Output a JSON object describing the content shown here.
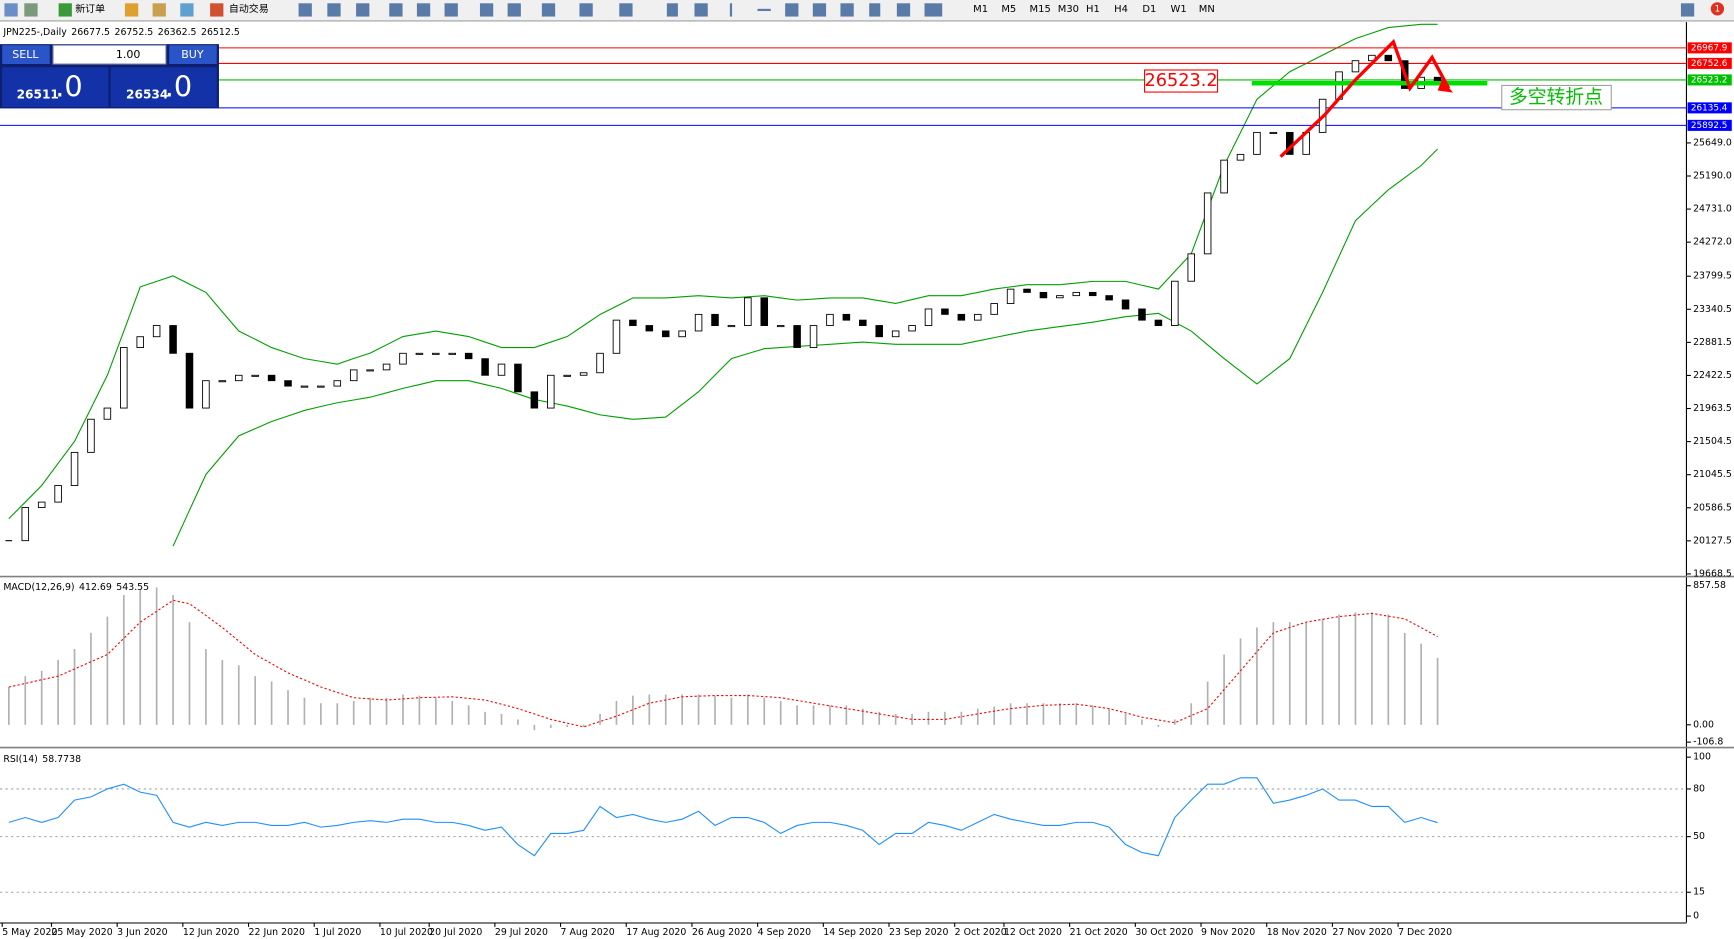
{
  "toolbar": {
    "new_order": "新订单",
    "auto_trading": "自动交易",
    "timeframes": [
      "M1",
      "M5",
      "M15",
      "M30",
      "H1",
      "H4",
      "D1",
      "W1",
      "MN"
    ],
    "notifications": "1"
  },
  "trade_panel": {
    "sell": "SELL",
    "buy": "BUY",
    "lot": "1.00",
    "bid_int": "26511",
    "bid_frac": ".0",
    "ask_int": "26534",
    "ask_frac": ".0"
  },
  "chart_data": [
    {
      "type": "candlestick",
      "title": "JPN225-,Daily",
      "header_values": [
        26677.5,
        26752.5,
        26362.5,
        26512.5
      ],
      "categories": [
        "5 May 2020",
        null,
        null,
        "25 May 2020",
        null,
        null,
        null,
        "3 Jun 2020",
        null,
        null,
        null,
        "12 Jun 2020",
        null,
        null,
        null,
        "22 Jun 2020",
        null,
        null,
        null,
        "1 Jul 2020",
        null,
        null,
        null,
        "10 Jul 2020",
        null,
        null,
        "20 Jul 2020",
        null,
        null,
        null,
        "29 Jul 2020",
        null,
        null,
        null,
        "7 Aug 2020",
        null,
        null,
        null,
        "17 Aug 2020",
        null,
        null,
        null,
        "26 Aug 2020",
        null,
        null,
        null,
        "4 Sep 2020",
        null,
        null,
        null,
        "14 Sep 2020",
        null,
        null,
        null,
        "23 Sep 2020",
        null,
        null,
        null,
        "2 Oct 2020",
        null,
        null,
        "12 Oct 2020",
        null,
        null,
        null,
        "21 Oct 2020",
        null,
        null,
        null,
        "30 Oct 2020",
        null,
        null,
        null,
        "9 Nov 2020",
        null,
        null,
        null,
        "18 Nov 2020",
        null,
        null,
        null,
        "27 Nov 2020",
        null,
        null,
        null,
        "7 Dec 2020",
        null,
        null
      ],
      "closes": [
        20130,
        20590,
        20665,
        20895,
        21355,
        21815,
        21970,
        22810,
        22960,
        23115,
        22730,
        21970,
        22350,
        22350,
        22425,
        22425,
        22350,
        22275,
        22275,
        22275,
        22350,
        22500,
        22500,
        22580,
        22730,
        22730,
        22730,
        22730,
        22655,
        22425,
        22580,
        22195,
        21970,
        22425,
        22425,
        22460,
        22730,
        23190,
        23115,
        23040,
        22960,
        23040,
        23270,
        23115,
        23115,
        23500,
        23115,
        23115,
        22810,
        23115,
        23270,
        23190,
        23115,
        22960,
        23040,
        23115,
        23345,
        23270,
        23190,
        23270,
        23420,
        23620,
        23575,
        23500,
        23530,
        23575,
        23530,
        23470,
        23345,
        23190,
        23115,
        23730,
        24110,
        24955,
        25410,
        25490,
        25795,
        25795,
        25490,
        25795,
        26255,
        26635,
        26790,
        26865,
        26790,
        26405,
        26560,
        26512.5
      ],
      "bands": {
        "color": "#00a000",
        "upper": [
          20436,
          20666,
          20895,
          21202,
          21508,
          21967,
          22426,
          23039,
          23651,
          23728,
          23804,
          23690,
          23575,
          23307,
          23039,
          22924,
          22809,
          22733,
          22656,
          22618,
          22580,
          22657,
          22733,
          22848,
          22962,
          23001,
          23039,
          23001,
          22962,
          22886,
          22809,
          22809,
          22809,
          22886,
          22962,
          23115,
          23268,
          23383,
          23498,
          23498,
          23498,
          23514,
          23529,
          23514,
          23498,
          23514,
          23529,
          23499,
          23468,
          23483,
          23498,
          23498,
          23498,
          23460,
          23422,
          23476,
          23529,
          23529,
          23529,
          23575,
          23621,
          23652,
          23682,
          23682,
          23682,
          23705,
          23728,
          23728,
          23728,
          23675,
          23621,
          23866,
          24111,
          24723,
          25335,
          25795,
          26254,
          26446,
          26637,
          26752,
          26866,
          26981,
          27096,
          27173,
          27249,
          27272,
          27295,
          27295
        ],
        "lower": [
          null,
          null,
          null,
          null,
          null,
          null,
          null,
          null,
          null,
          null,
          20053,
          20551,
          21049,
          21317,
          21584,
          21684,
          21783,
          21860,
          21937,
          21991,
          22044,
          22082,
          22120,
          22182,
          22243,
          22297,
          22350,
          22350,
          22350,
          22297,
          22243,
          22167,
          22090,
          22044,
          21998,
          21937,
          21875,
          21845,
          21814,
          21830,
          21845,
          22021,
          22197,
          22427,
          22656,
          22725,
          22794,
          22809,
          22824,
          22840,
          22855,
          22871,
          22886,
          22871,
          22855,
          22855,
          22855,
          22855,
          22855,
          22901,
          22947,
          22993,
          23039,
          23070,
          23100,
          23131,
          23161,
          23200,
          23238,
          23261,
          23284,
          23162,
          23039,
          22848,
          22656,
          22480,
          22304,
          22480,
          22656,
          23116,
          23575,
          24073,
          24570,
          24785,
          24999,
          25167,
          25335,
          25565
        ]
      },
      "levels": [
        {
          "value": 26967.9,
          "color": "#ff0000"
        },
        {
          "value": 26752.6,
          "color": "#ff0000"
        },
        {
          "value": 26523.2,
          "color": "#00c000"
        },
        {
          "value": 26135.4,
          "color": "#0000ff"
        },
        {
          "value": 25892.5,
          "color": "#0000ff"
        }
      ],
      "annotation_value": 26523.2,
      "annotation_text": "多空转折点",
      "ylim": [
        19640,
        27326
      ],
      "yticks": [
        {
          "value": 25649,
          "label": "25649.0"
        },
        {
          "value": 25190,
          "label": "25190.0"
        },
        {
          "value": 24731,
          "label": "24731.0"
        },
        {
          "value": 24272,
          "label": "24272.0"
        },
        23799.5,
        23340.5,
        22881.5,
        22422.5,
        21963.5,
        21504.5,
        21045.5,
        20586.5,
        20127.5,
        19668.5
      ]
    },
    {
      "type": "macd",
      "title": "MACD(12,26,9)",
      "header_values": [
        412.69,
        543.55
      ],
      "series": [
        {
          "color": "#b0b0b0",
          "values": [
            233,
            300,
            333,
            400,
            467,
            567,
            667,
            800,
            833,
            847,
            800,
            633,
            467,
            400,
            367,
            300,
            267,
            213,
            167,
            133,
            133,
            147,
            167,
            167,
            187,
            180,
            167,
            147,
            120,
            80,
            67,
            33,
            -33,
            -20,
            -13,
            -13,
            67,
            147,
            180,
            187,
            187,
            187,
            187,
            180,
            167,
            187,
            167,
            147,
            120,
            120,
            120,
            120,
            100,
            80,
            67,
            67,
            80,
            80,
            80,
            100,
            113,
            133,
            133,
            133,
            133,
            133,
            120,
            100,
            67,
            33,
            -13,
            33,
            133,
            267,
            433,
            533,
            600,
            633,
            633,
            633,
            653,
            680,
            693,
            693,
            680,
            567,
            500,
            412.69
          ]
        },
        {
          "color": "#ff0000",
          "values": [
            233,
            255,
            278,
            300,
            344,
            389,
            433,
            533,
            633,
            700,
            767,
            747,
            674,
            600,
            517,
            433,
            377,
            320,
            277,
            233,
            200,
            167,
            160,
            153,
            160,
            167,
            170,
            173,
            163,
            153,
            127,
            100,
            67,
            33,
            10,
            -13,
            20,
            53,
            93,
            133,
            153,
            173,
            177,
            180,
            180,
            180,
            174,
            167,
            150,
            133,
            117,
            100,
            84,
            67,
            50,
            33,
            33,
            33,
            50,
            67,
            84,
            100,
            110,
            120,
            124,
            127,
            114,
            100,
            74,
            47,
            30,
            13,
            57,
            100,
            217,
            333,
            450,
            567,
            600,
            633,
            650,
            667,
            677,
            687,
            670,
            653,
            599,
            543.55
          ]
        }
      ],
      "ylim": [
        -130,
        904
      ],
      "yticks": [
        857.58,
        {
          "value": 0,
          "label": "0.00"
        },
        -106.8
      ]
    },
    {
      "type": "line",
      "title": "RSI(14)",
      "header_values": [
        58.7738
      ],
      "color": "#1e8fff",
      "values": [
        59,
        62,
        59,
        62,
        73,
        75,
        80,
        83,
        78,
        76,
        59,
        56,
        59,
        57,
        59,
        59,
        57,
        57,
        59,
        56,
        57,
        59,
        60,
        59,
        61,
        61,
        59,
        59,
        57,
        54,
        56,
        45,
        38,
        52,
        52,
        54,
        69,
        62,
        64,
        61,
        59,
        61,
        66,
        57,
        62,
        62,
        59,
        52,
        57,
        59,
        59,
        57,
        54,
        45,
        52,
        52,
        59,
        57,
        54,
        59,
        64,
        61,
        59,
        57,
        57,
        59,
        59,
        56,
        45,
        40,
        38,
        62,
        73,
        83,
        83,
        87,
        87,
        71,
        73,
        76,
        80,
        73,
        73,
        69,
        69,
        59,
        62,
        58.7738
      ],
      "levels": [
        80,
        50,
        15
      ],
      "ylim": [
        -4,
        105
      ],
      "yticks": [
        100,
        80,
        50,
        15,
        0
      ]
    }
  ]
}
